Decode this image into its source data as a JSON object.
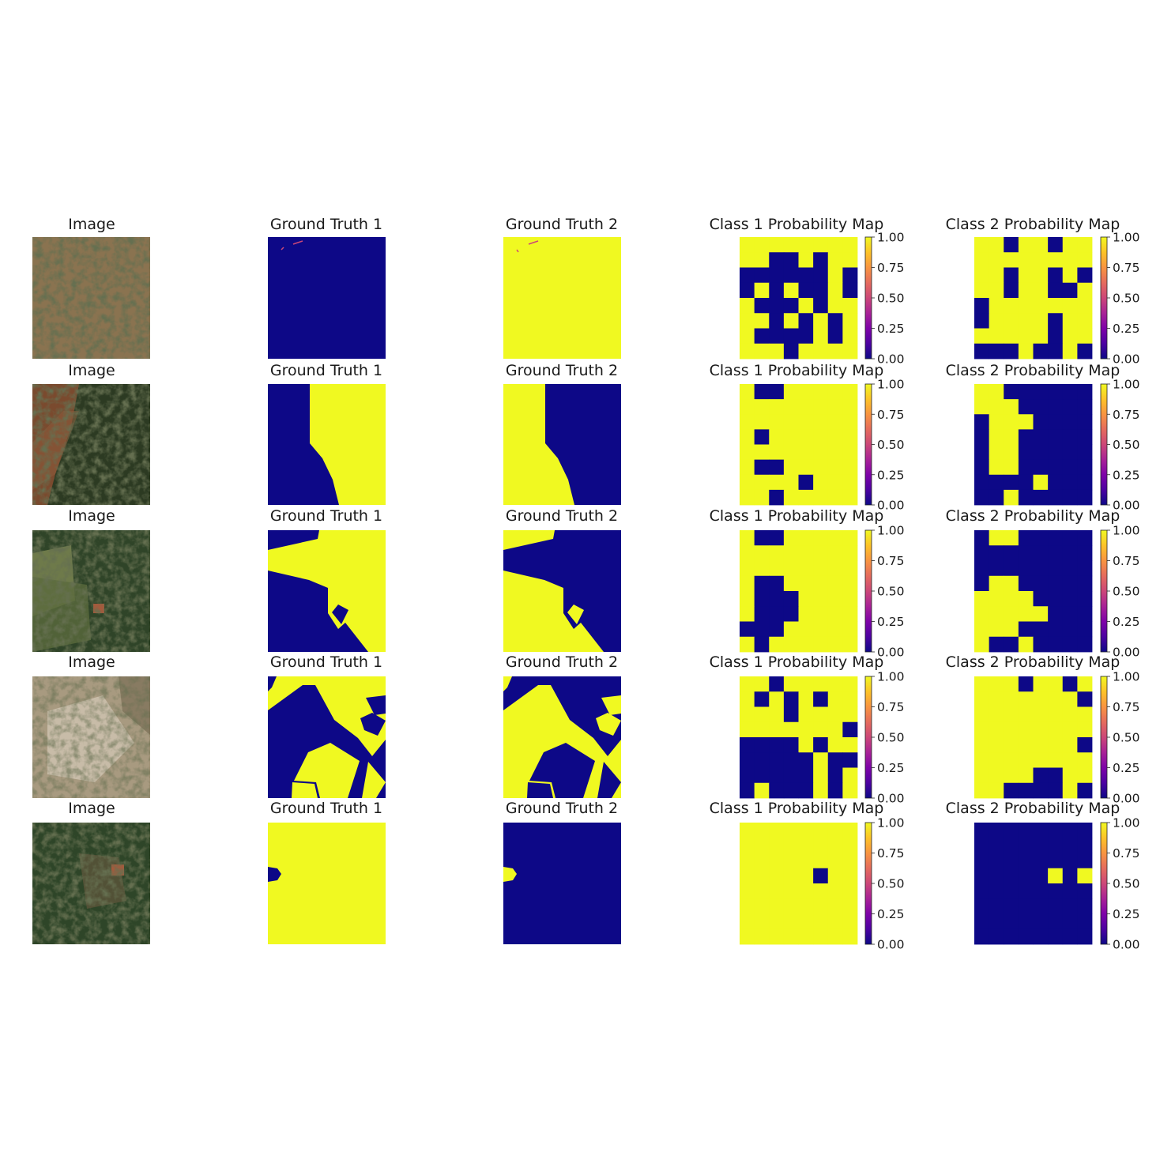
{
  "titles": {
    "image": "Image",
    "gt1": "Ground Truth 1",
    "gt2": "Ground Truth 2",
    "prob1": "Class 1 Probability Map",
    "prob2": "Class 2 Probability Map"
  },
  "chart_data": {
    "type": "heatmap",
    "colormap": "plasma",
    "colorbar": {
      "min": 0.0,
      "max": 1.0,
      "ticks": [
        "0.00",
        "0.25",
        "0.50",
        "0.75",
        "1.00"
      ]
    },
    "grid_size": [
      8,
      8
    ],
    "rows": [
      {
        "image_palette": [
          "#8a7350",
          "#6b5a3c",
          "#4e4a30",
          "#97805c"
        ],
        "class1_probability": [
          "........",
          "..##.#..",
          "######.#",
          "#.#.##.#",
          ".###.#..",
          "..#.#.#.",
          ".####.#.",
          "...#...."
        ],
        "class2_probability": [
          "..#..#..",
          "........",
          "..#..#.#",
          "..#..##.",
          "#.......",
          "#....#..",
          ".....#..",
          "###.##.#"
        ]
      },
      {
        "image_palette": [
          "#2c3a22",
          "#7a4a2e",
          "#3b4a2a",
          "#8a5a3a"
        ],
        "class1_probability": [
          ".##.....",
          "........",
          "........",
          ".#......",
          "........",
          ".##.....",
          "....#...",
          "..#....."
        ],
        "class2_probability": [
          "..######",
          "...#####",
          "#...####",
          "#..#####",
          "#..#####",
          "#..#####",
          "####.###",
          "##.#####"
        ]
      },
      {
        "image_palette": [
          "#3c5a32",
          "#6e7a4a",
          "#2f4428",
          "#5a6a3c"
        ],
        "class1_probability": [
          ".##.....",
          "........",
          "........",
          ".##.....",
          ".###....",
          ".###....",
          "###.....",
          ".#......"
        ],
        "class2_probability": [
          "#..#####",
          "########",
          "########",
          "#..#####",
          "....####",
          ".....###",
          "...#####",
          ".##.####"
        ]
      },
      {
        "image_palette": [
          "#a89a80",
          "#c8bca8",
          "#7a6e56",
          "#5e5a44"
        ],
        "class1_probability": [
          "..#.....",
          ".#.#.#..",
          "...#....",
          ".......#",
          "####.#..",
          "#####.##",
          "#####.#.",
          "#.###.#."
        ],
        "class2_probability": [
          "...#..#.",
          ".......#",
          "........",
          "........",
          ".......#",
          "........",
          "....##..",
          "..####.#"
        ]
      },
      {
        "image_palette": [
          "#2e4528",
          "#3a5232",
          "#6a5a40",
          "#a45a3c"
        ],
        "class1_probability": [
          "........",
          "........",
          "........",
          ".....#..",
          "........",
          "........",
          "........",
          "........"
        ],
        "class2_probability": [
          "########",
          "########",
          "########",
          "#####.#.",
          "########",
          "########",
          "########",
          "########"
        ]
      }
    ]
  }
}
